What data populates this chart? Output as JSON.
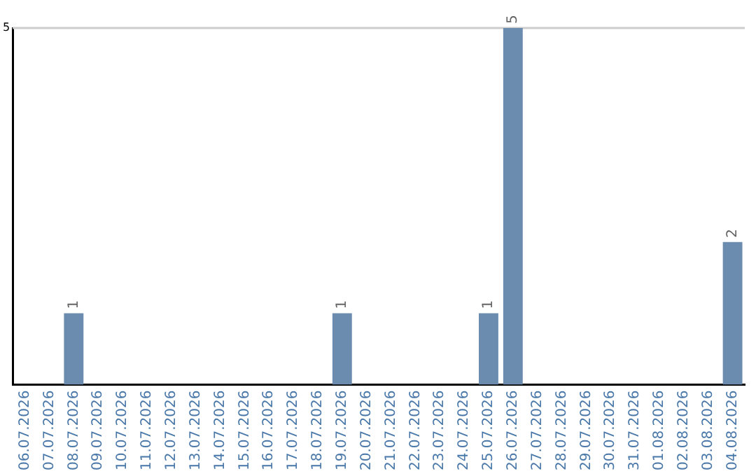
{
  "chart_data": {
    "type": "bar",
    "categories": [
      "06.07.2026",
      "07.07.2026",
      "08.07.2026",
      "09.07.2026",
      "10.07.2026",
      "11.07.2026",
      "12.07.2026",
      "13.07.2026",
      "14.07.2026",
      "15.07.2026",
      "16.07.2026",
      "17.07.2026",
      "18.07.2026",
      "19.07.2026",
      "20.07.2026",
      "21.07.2026",
      "22.07.2026",
      "23.07.2026",
      "24.07.2026",
      "25.07.2026",
      "26.07.2026",
      "27.07.2026",
      "28.07.2026",
      "29.07.2026",
      "30.07.2026",
      "31.07.2026",
      "01.08.2026",
      "02.08.2026",
      "03.08.2026",
      "04.08.2026"
    ],
    "values": [
      0,
      0,
      1,
      0,
      0,
      0,
      0,
      0,
      0,
      0,
      0,
      0,
      0,
      1,
      0,
      0,
      0,
      0,
      0,
      1,
      5,
      0,
      0,
      0,
      0,
      0,
      0,
      0,
      0,
      2
    ],
    "value_labels": [
      null,
      null,
      "1",
      null,
      null,
      null,
      null,
      null,
      null,
      null,
      null,
      null,
      null,
      "1",
      null,
      null,
      null,
      null,
      null,
      "1",
      "5",
      null,
      null,
      null,
      null,
      null,
      null,
      null,
      null,
      "2"
    ],
    "color": "#6b8cae",
    "ylim": [
      0,
      5
    ],
    "yticks": [
      5
    ],
    "ref_lines": [
      {
        "axis": "y",
        "value": 5,
        "color": "#cccccc"
      }
    ],
    "legend": false
  }
}
